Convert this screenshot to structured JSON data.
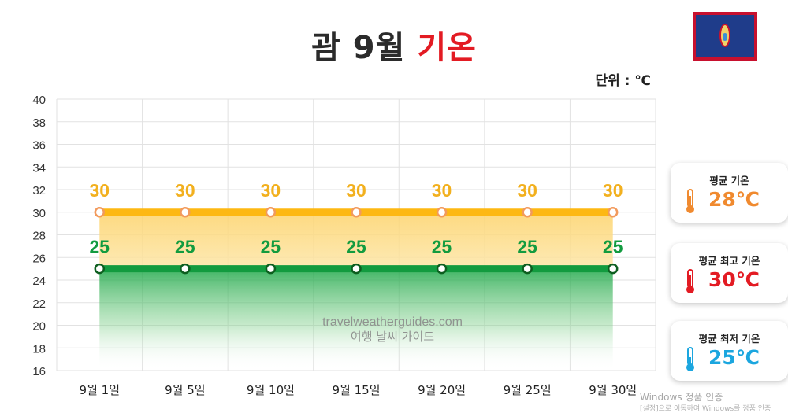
{
  "header": {
    "title_main": "괌 9월",
    "title_accent": "기온",
    "unit": "단위 : ℃"
  },
  "chart_data": {
    "type": "line",
    "categories": [
      "9월 1일",
      "9월 5일",
      "9월 10일",
      "9월 15일",
      "9월 20일",
      "9월 25일",
      "9월 30일"
    ],
    "series": [
      {
        "values": [
          30,
          30,
          30,
          30,
          30,
          30,
          30
        ],
        "color": "#fdb813"
      },
      {
        "values": [
          25,
          25,
          25,
          25,
          25,
          25,
          25
        ],
        "color": "#129b3f"
      }
    ],
    "ylim": [
      16,
      40
    ],
    "yticks": [
      16,
      18,
      20,
      22,
      24,
      26,
      28,
      30,
      32,
      34,
      36,
      38,
      40
    ],
    "grid": true
  },
  "watermark": {
    "site": "travelweatherguides.com",
    "subtitle": "여행 날씨 가이드"
  },
  "cards": [
    {
      "label": "평균 기온",
      "value": "28℃",
      "color": "#f08a2f"
    },
    {
      "label": "평균 최고 기온",
      "value": "30℃",
      "color": "#e31b23"
    },
    {
      "label": "평균 최저 기온",
      "value": "25℃",
      "color": "#1ba6df"
    }
  ],
  "os_watermark": {
    "line1": "Windows 정품 인증",
    "line2": "[설정]으로 이동하여 Windows를 정품 인증"
  }
}
